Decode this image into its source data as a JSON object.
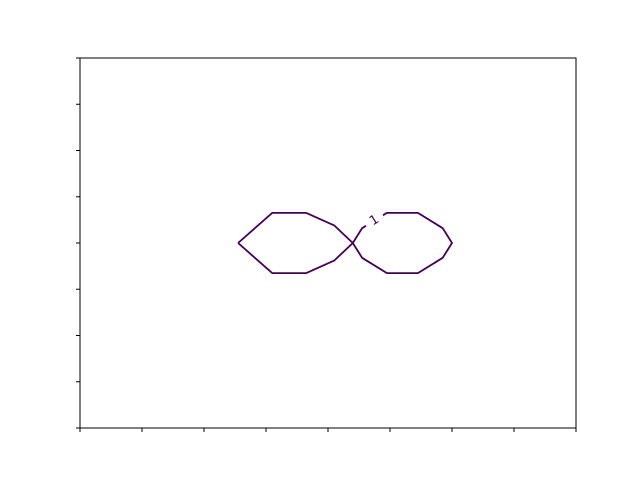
{
  "chart_data": {
    "type": "contour",
    "title": "",
    "xlabel": "",
    "ylabel": "",
    "xlim": [
      0,
      8
    ],
    "ylim": [
      0,
      8
    ],
    "x_ticks": [
      0,
      1,
      2,
      3,
      4,
      5,
      6,
      7,
      8
    ],
    "y_ticks": [
      0,
      1,
      2,
      3,
      4,
      5,
      6,
      7,
      8
    ],
    "x_tick_labels_shown": false,
    "y_tick_labels_shown": false,
    "grid": false,
    "contour_color": "#440154",
    "levels": [
      {
        "value": 1,
        "label": "1",
        "paths": [
          {
            "points": [
              [
                2.55,
                4.0
              ],
              [
                3.1,
                4.65
              ],
              [
                3.65,
                4.65
              ],
              [
                4.1,
                4.38
              ],
              [
                4.4,
                4.0
              ],
              [
                4.1,
                3.62
              ],
              [
                3.65,
                3.35
              ],
              [
                3.1,
                3.35
              ],
              [
                2.55,
                4.0
              ]
            ]
          },
          {
            "points": [
              [
                4.4,
                4.0
              ],
              [
                4.55,
                4.32
              ],
              [
                4.95,
                4.65
              ],
              [
                5.45,
                4.65
              ],
              [
                5.85,
                4.32
              ],
              [
                6.0,
                4.0
              ],
              [
                5.85,
                3.68
              ],
              [
                5.45,
                3.35
              ],
              [
                4.95,
                3.35
              ],
              [
                4.55,
                3.68
              ],
              [
                4.4,
                4.0
              ]
            ]
          }
        ]
      }
    ]
  }
}
